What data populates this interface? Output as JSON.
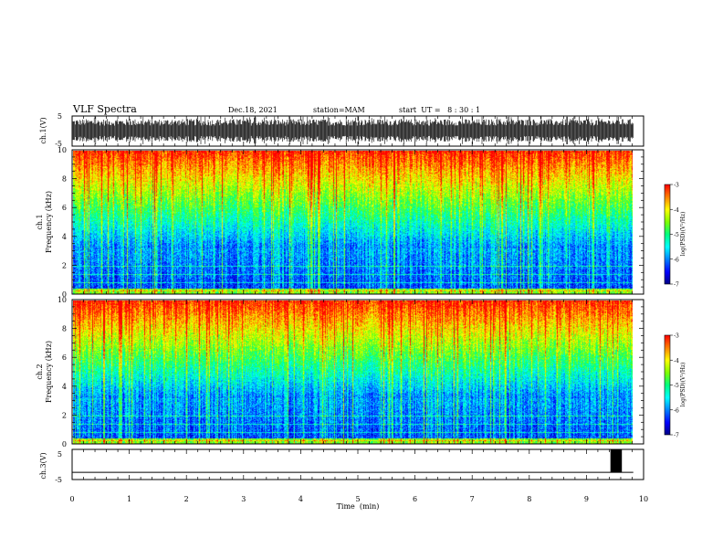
{
  "header": {
    "title": "VLF Spectra",
    "date": "Dec.18, 2021",
    "station": "station=MAM",
    "start": "start  UT =   8 : 30 : 1"
  },
  "colors": {
    "colormap": [
      "#000080",
      "#0000ff",
      "#0080ff",
      "#00ffff",
      "#00ff80",
      "#80ff00",
      "#ffff00",
      "#ff8000",
      "#ff0000",
      "#ffffff"
    ]
  },
  "chart_data": [
    {
      "type": "line",
      "name": "ch1-waveform",
      "ylabel": "ch.1(V)",
      "ylim": [
        -5,
        5
      ],
      "yticks": [
        "5",
        "-5"
      ],
      "xlim": [
        0,
        10
      ],
      "grid": false
    },
    {
      "type": "heatmap",
      "name": "ch1-spectrogram",
      "ylabel_top": "ch.1",
      "ylabel": "Frequency  (kHz)",
      "xlim": [
        0,
        10
      ],
      "ylim": [
        0,
        10
      ],
      "data_xmax": 9.82,
      "yticks": [
        "0",
        "2",
        "4",
        "6",
        "8",
        "10"
      ],
      "colorbar": {
        "label": "log(PSD)(V²/Hz)",
        "range": [
          -7,
          -3
        ],
        "ticks": [
          "-3",
          "-4",
          "-5",
          "-6",
          "-7"
        ]
      }
    },
    {
      "type": "heatmap",
      "name": "ch2-spectrogram",
      "ylabel_top": "ch.2",
      "ylabel": "Frequency  (kHz)",
      "xlim": [
        0,
        10
      ],
      "ylim": [
        0,
        10
      ],
      "data_xmax": 9.82,
      "yticks": [
        "0",
        "2",
        "4",
        "6",
        "8",
        "10"
      ],
      "colorbar": {
        "label": "log(PSD)(V²/Hz)",
        "range": [
          -7,
          -3
        ],
        "ticks": [
          "-3",
          "-4",
          "-5",
          "-6",
          "-7"
        ]
      }
    },
    {
      "type": "line",
      "name": "ch3-signal",
      "ylabel": "ch.3(V)",
      "ylim": [
        -5,
        5
      ],
      "yticks": [
        "5",
        "-5"
      ],
      "xlim": [
        0,
        10
      ],
      "xlabel": "Time  (min)",
      "xticks": [
        "0",
        "1",
        "2",
        "3",
        "4",
        "5",
        "6",
        "7",
        "8",
        "9",
        "10"
      ],
      "baseline": -2.6,
      "pulse": {
        "x_start": 9.42,
        "x_end": 9.62,
        "y_low": -2.6,
        "y_high": 5
      },
      "data_xmax": 9.82
    }
  ]
}
